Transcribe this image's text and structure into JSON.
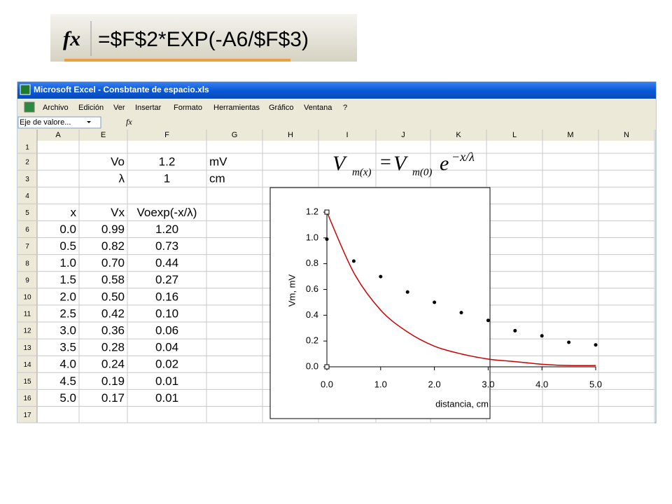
{
  "formula_zoom": {
    "icon": "fx",
    "formula": "=$F$2*EXP(-A6/$F$3)"
  },
  "window": {
    "title": "Microsoft Excel - Consbtante de espacio.xls"
  },
  "menu": [
    "Archivo",
    "Edición",
    "Ver",
    "Insertar",
    "Formato",
    "Herramientas",
    "Gráfico",
    "Ventana",
    "?"
  ],
  "name_box": "Eje de valore...",
  "formula_icon": "fx",
  "sheet": {
    "columns": [
      "A",
      "E",
      "F",
      "G",
      "H",
      "I",
      "J",
      "K",
      "L",
      "M",
      "N"
    ],
    "rows": [
      {
        "num": "1"
      },
      {
        "num": "2",
        "E": "Vo",
        "F": "1.2",
        "G": "mV"
      },
      {
        "num": "3",
        "E": "λ",
        "F": "1",
        "G": "cm"
      },
      {
        "num": "4"
      },
      {
        "num": "5",
        "A": "x",
        "E": "Vx",
        "F": "Voexp(-x/λ)"
      },
      {
        "num": "6",
        "A": "0.0",
        "E": "0.99",
        "F": "1.20"
      },
      {
        "num": "7",
        "A": "0.5",
        "E": "0.82",
        "F": "0.73"
      },
      {
        "num": "8",
        "A": "1.0",
        "E": "0.70",
        "F": "0.44"
      },
      {
        "num": "9",
        "A": "1.5",
        "E": "0.58",
        "F": "0.27"
      },
      {
        "num": "10",
        "A": "2.0",
        "E": "0.50",
        "F": "0.16"
      },
      {
        "num": "11",
        "A": "2.5",
        "E": "0.42",
        "F": "0.10"
      },
      {
        "num": "12",
        "A": "3.0",
        "E": "0.36",
        "F": "0.06"
      },
      {
        "num": "13",
        "A": "3.5",
        "E": "0.28",
        "F": "0.04"
      },
      {
        "num": "14",
        "A": "4.0",
        "E": "0.24",
        "F": "0.02"
      },
      {
        "num": "15",
        "A": "4.5",
        "E": "0.19",
        "F": "0.01"
      },
      {
        "num": "16",
        "A": "5.0",
        "E": "0.17",
        "F": "0.01"
      },
      {
        "num": "17"
      }
    ]
  },
  "equation": {
    "lhs": "V",
    "lhs_sub": "m(x)",
    "eq": "=",
    "rhs": "V",
    "rhs_sub": "m(0)",
    "base": "e",
    "exp": "−x/λ"
  },
  "chart": {
    "type": "scatter",
    "x_label": "distancia, cm",
    "y_label": "Vm, mV",
    "x": [
      0,
      0.5,
      1,
      1.5,
      2,
      2.5,
      3,
      3.5,
      4,
      4.5,
      5
    ],
    "series": [
      {
        "color": "#000000",
        "style": "markers",
        "values": [
          0.99,
          0.82,
          0.7,
          0.58,
          0.5,
          0.42,
          0.36,
          0.28,
          0.24,
          0.19,
          0.17
        ]
      },
      {
        "color": "#cc0000",
        "style": "line",
        "values": [
          1.2,
          0.73,
          0.44,
          0.27,
          0.16,
          0.1,
          0.06,
          0.04,
          0.02,
          0.01,
          0.01
        ]
      }
    ],
    "xlim": [
      0,
      5
    ],
    "ylim": [
      0,
      1.2
    ],
    "xticks": [
      {
        "value": 0,
        "label": "0.0"
      },
      {
        "value": 1,
        "label": "1.0"
      },
      {
        "value": 2,
        "label": "2.0"
      },
      {
        "value": 3,
        "label": "3.0"
      },
      {
        "value": 4,
        "label": "4.0"
      },
      {
        "value": 5,
        "label": "5.0"
      }
    ],
    "yticks": [
      {
        "value": 0,
        "label": "0.0"
      },
      {
        "value": 0.2,
        "label": "0.2"
      },
      {
        "value": 0.4,
        "label": "0.4"
      },
      {
        "value": 0.6,
        "label": "0.6"
      },
      {
        "value": 0.8,
        "label": "0.8"
      },
      {
        "value": 1,
        "label": "1.0"
      },
      {
        "value": 1.2,
        "label": "1.2"
      }
    ]
  }
}
